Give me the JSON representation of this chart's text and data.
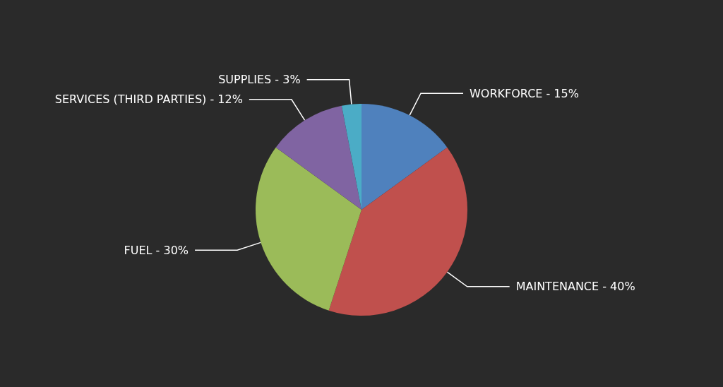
{
  "chart_data": {
    "type": "pie",
    "categories": [
      "WORKFORCE - 15%",
      "MAINTENANCE - 40%",
      "FUEL - 30%",
      "SERVICES (THIRD PARTIES) - 12%",
      "SUPPLIES - 3%"
    ],
    "values": [
      15,
      40,
      30,
      12,
      3
    ],
    "colors": [
      "#4f81bd",
      "#c0504d",
      "#9bbb59",
      "#8064a2",
      "#4bacc6"
    ],
    "legend": false
  }
}
